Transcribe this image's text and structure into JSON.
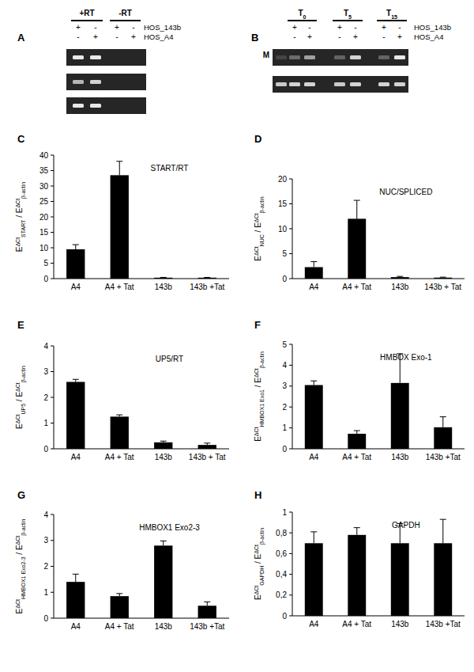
{
  "chart_data": [
    {
      "type": "bar",
      "panel": "C",
      "title": "START/RT",
      "ylabel": [
        {
          "text": "E"
        },
        {
          "text": "ΔCt",
          "sup": true
        },
        {
          "text": "START",
          "sub": true
        },
        {
          "text": " / E"
        },
        {
          "text": "ΔCt",
          "sup": true
        },
        {
          "text": "β-actin",
          "sub": true
        }
      ],
      "categories": [
        "A4",
        "A4 + Tat",
        "143b",
        "143b +Tat"
      ],
      "values": [
        9.5,
        33.5,
        0.3,
        0.3
      ],
      "errors": [
        1.5,
        4.5,
        0.1,
        0.1
      ],
      "color": "#000000",
      "ylim": [
        0,
        40
      ],
      "yticks": [
        0,
        5,
        10,
        15,
        20,
        25,
        30,
        35,
        40
      ]
    },
    {
      "type": "bar",
      "panel": "D",
      "title": "NUC/SPLICED",
      "ylabel": [
        {
          "text": "E"
        },
        {
          "text": "ΔCt",
          "sup": true
        },
        {
          "text": "NUC",
          "sub": true
        },
        {
          "text": " / E"
        },
        {
          "text": "ΔCt",
          "sup": true
        },
        {
          "text": "β-actin",
          "sub": true
        }
      ],
      "categories": [
        "A4",
        "A4 + Tat",
        "143b",
        "143b + Tat"
      ],
      "values": [
        2.3,
        12,
        0.3,
        0.2
      ],
      "errors": [
        1.1,
        3.7,
        0.15,
        0.1
      ],
      "color": "#000000",
      "ylim": [
        0,
        20
      ],
      "yticks": [
        0,
        5,
        10,
        15,
        20
      ]
    },
    {
      "type": "bar",
      "panel": "E",
      "title": "UP5/RT",
      "ylabel": [
        {
          "text": "E"
        },
        {
          "text": "ΔCt",
          "sup": true
        },
        {
          "text": "UP5",
          "sub": true
        },
        {
          "text": " / E"
        },
        {
          "text": "ΔCt",
          "sup": true
        },
        {
          "text": "β-actin",
          "sub": true
        }
      ],
      "categories": [
        "A4",
        "A4 + Tat",
        "143b",
        "143b + Tat"
      ],
      "values": [
        2.6,
        1.25,
        0.25,
        0.15
      ],
      "errors": [
        0.1,
        0.07,
        0.05,
        0.07
      ],
      "color": "#000000",
      "ylim": [
        0,
        4
      ],
      "yticks": [
        0,
        1,
        2,
        3,
        4
      ]
    },
    {
      "type": "bar",
      "panel": "F",
      "title": "HMBOX Exo-1",
      "ylabel": [
        {
          "text": "E"
        },
        {
          "text": "ΔCt",
          "sup": true
        },
        {
          "text": "HMBOX1 Exo1",
          "sub": true
        },
        {
          "text": " / E"
        },
        {
          "text": "ΔCt",
          "sup": true
        },
        {
          "text": "β-actin",
          "sub": true
        }
      ],
      "categories": [
        "A4",
        "A4 + Tat",
        "143b",
        "143b +Tat"
      ],
      "values": [
        3.05,
        0.72,
        3.15,
        1.03
      ],
      "errors": [
        0.2,
        0.15,
        1.4,
        0.5
      ],
      "color": "#000000",
      "ylim": [
        0,
        5
      ],
      "yticks": [
        0,
        1,
        2,
        3,
        4,
        5
      ]
    },
    {
      "type": "bar",
      "panel": "G",
      "title": "HMBOX1 Exo2-3",
      "ylabel": [
        {
          "text": "E"
        },
        {
          "text": "ΔCt",
          "sup": true
        },
        {
          "text": "HMBOX1 Exo2-3",
          "sub": true
        },
        {
          "text": " / E"
        },
        {
          "text": "ΔCt",
          "sup": true
        },
        {
          "text": "β-actin",
          "sub": true
        }
      ],
      "categories": [
        "A4",
        "A4 + Tat",
        "143b",
        "143b +Tat"
      ],
      "values": [
        1.4,
        0.85,
        2.8,
        0.48
      ],
      "errors": [
        0.3,
        0.1,
        0.18,
        0.15
      ],
      "color": "#000000",
      "ylim": [
        0,
        4
      ],
      "yticks": [
        0,
        1,
        2,
        3,
        4
      ]
    },
    {
      "type": "bar",
      "panel": "H",
      "title": "GAPDH",
      "ylabel": [
        {
          "text": "E"
        },
        {
          "text": "ΔCt",
          "sup": true
        },
        {
          "text": "GAPDH",
          "sub": true
        },
        {
          "text": " / E"
        },
        {
          "text": "ΔCt",
          "sup": true
        },
        {
          "text": "β-actin",
          "sub": true
        }
      ],
      "categories": [
        "A4",
        "A4 + Tat",
        "143b",
        "143b +Tat"
      ],
      "values": [
        0.7,
        0.78,
        0.7,
        0.7
      ],
      "errors": [
        0.11,
        0.07,
        0.19,
        0.23
      ],
      "color": "#000000",
      "ylim": [
        0,
        1
      ],
      "yticks": [
        0,
        {
          "value": 0.2,
          "label": "0,2"
        },
        {
          "value": 0.4,
          "label": "0,4"
        },
        {
          "value": 0.6,
          "label": "0,6"
        },
        {
          "value": 0.8,
          "label": "0,8"
        },
        1
      ]
    }
  ],
  "gels": [
    {
      "panel": "A",
      "groups": [
        {
          "label": [
            {
              "text": "+RT"
            }
          ],
          "lanes": [
            0,
            1
          ]
        },
        {
          "label": [
            {
              "text": "-RT"
            }
          ],
          "lanes": [
            2,
            3
          ]
        }
      ],
      "rows": [
        {
          "label": "HOS_143b",
          "signs": [
            "+",
            "-",
            "+",
            "-"
          ]
        },
        {
          "label": "HOS_A4",
          "signs": [
            "-",
            "+",
            "-",
            "+"
          ]
        }
      ],
      "strips": [
        [
          0.95,
          0.95,
          0,
          0
        ],
        [
          0.7,
          0.85,
          0,
          0
        ],
        [
          0.95,
          0.95,
          0,
          0
        ]
      ]
    },
    {
      "panel": "B",
      "marker": "M",
      "groups": [
        {
          "label": [
            {
              "text": "T"
            },
            {
              "text": "0",
              "sub": true
            }
          ],
          "lanes": [
            1,
            2
          ]
        },
        {
          "label": [
            {
              "text": "T"
            },
            {
              "text": "5",
              "sub": true
            }
          ],
          "lanes": [
            3,
            4
          ]
        },
        {
          "label": [
            {
              "text": "T"
            },
            {
              "text": "15",
              "sub": true
            }
          ],
          "lanes": [
            5,
            6
          ]
        }
      ],
      "rows": [
        {
          "label": "HOS_143b",
          "signs": [
            "+",
            "-",
            "+",
            "-",
            "+",
            "-"
          ]
        },
        {
          "label": "HOS_A4",
          "signs": [
            "-",
            "+",
            "-",
            "+",
            "-",
            "+"
          ]
        }
      ],
      "strips": [
        [
          0.15,
          0.35,
          0.6,
          0.3,
          0.85,
          0.3,
          0.95
        ],
        [
          0.8,
          0.85,
          0.85,
          0.8,
          0.85,
          0.85,
          0.85
        ]
      ]
    }
  ]
}
